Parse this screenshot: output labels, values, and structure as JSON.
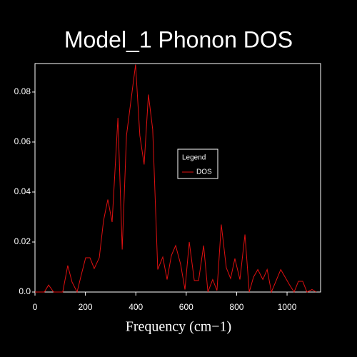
{
  "chart_data": {
    "type": "line",
    "title": "Model_1 Phonon DOS",
    "x_label": "Frequency (cm−1)",
    "x": [
      0,
      37,
      54,
      74,
      110,
      130,
      147,
      167,
      184,
      201,
      218,
      235,
      255,
      272,
      289,
      306,
      329,
      346,
      363,
      399,
      416,
      433,
      450,
      467,
      487,
      507,
      524,
      541,
      558,
      578,
      595,
      612,
      632,
      649,
      669,
      686,
      705,
      722,
      739,
      759,
      776,
      793,
      813,
      833,
      850,
      867,
      884,
      904,
      921,
      938,
      975,
      1009,
      1028,
      1045,
      1062,
      1079,
      1099,
      1116
    ],
    "series": [
      {
        "name": "DOS",
        "color": "#e01010",
        "values": [
          0,
          0,
          0.0028,
          0,
          0,
          0.0106,
          0.004,
          0,
          0.007,
          0.0137,
          0.0137,
          0.0094,
          0.0137,
          0.0286,
          0.037,
          0.028,
          0.0697,
          0.017,
          0.0626,
          0.091,
          0.0626,
          0.051,
          0.079,
          0.065,
          0.009,
          0.014,
          0.005,
          0.0146,
          0.0186,
          0.011,
          0.001,
          0.02,
          0.0046,
          0.0046,
          0.0186,
          0,
          0.005,
          0.0006,
          0.027,
          0.0097,
          0.0054,
          0.0134,
          0.005,
          0.023,
          0,
          0.006,
          0.009,
          0.005,
          0.009,
          0,
          0.009,
          0.003,
          0,
          0.0043,
          0.0043,
          0,
          0.001,
          0
        ]
      }
    ],
    "xlim": [
      0,
      1133
    ],
    "xticks": [
      0,
      200,
      400,
      600,
      800,
      1000
    ],
    "ylim": [
      0,
      0.0914
    ],
    "yticks": [
      {
        "value": 0,
        "label": "0.0"
      },
      0.02,
      0.04,
      0.06,
      0.08
    ],
    "legend_title": "Legend",
    "legend": "center-right"
  }
}
